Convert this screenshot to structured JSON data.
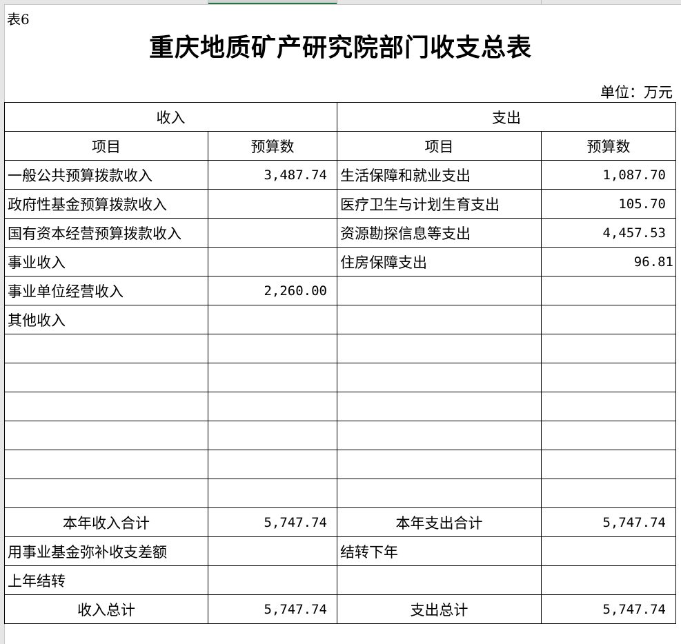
{
  "sheet": {
    "selected_column": "B"
  },
  "label": "表6",
  "title": "重庆地质矿产研究院部门收支总表",
  "unit": "单位：万元",
  "headers": {
    "income": "收入",
    "expense": "支出",
    "item": "项目",
    "budget": "预算数"
  },
  "rows": [
    {
      "income_item": "一般公共预算拨款收入",
      "income_value": "3,487.74",
      "expense_item": "生活保障和就业支出",
      "expense_value": "1,087.70"
    },
    {
      "income_item": "政府性基金预算拨款收入",
      "income_value": "",
      "expense_item": "医疗卫生与计划生育支出",
      "expense_value": "105.70"
    },
    {
      "income_item": "国有资本经营预算拨款收入",
      "income_value": "",
      "expense_item": "资源勘探信息等支出",
      "expense_value": "4,457.53"
    },
    {
      "income_item": "事业收入",
      "income_value": "",
      "expense_item": "住房保障支出",
      "expense_value": "96.81"
    },
    {
      "income_item": "事业单位经营收入",
      "income_value": "2,260.00",
      "expense_item": "",
      "expense_value": ""
    },
    {
      "income_item": "其他收入",
      "income_value": "",
      "expense_item": "",
      "expense_value": ""
    },
    {
      "income_item": "",
      "income_value": "",
      "expense_item": "",
      "expense_value": ""
    },
    {
      "income_item": "",
      "income_value": "",
      "expense_item": "",
      "expense_value": ""
    },
    {
      "income_item": "",
      "income_value": "",
      "expense_item": "",
      "expense_value": ""
    },
    {
      "income_item": "",
      "income_value": "",
      "expense_item": "",
      "expense_value": ""
    },
    {
      "income_item": "",
      "income_value": "",
      "expense_item": "",
      "expense_value": ""
    },
    {
      "income_item": "",
      "income_value": "",
      "expense_item": "",
      "expense_value": ""
    }
  ],
  "subtotal": {
    "income_label": "本年收入合计",
    "income_value": "5,747.74",
    "expense_label": "本年支出合计",
    "expense_value": "5,747.74"
  },
  "extra_rows": [
    {
      "income_item": "用事业基金弥补收支差额",
      "income_value": "",
      "expense_item": "结转下年",
      "expense_value": ""
    },
    {
      "income_item": "上年结转",
      "income_value": "",
      "expense_item": "",
      "expense_value": ""
    }
  ],
  "total": {
    "income_label": "收入总计",
    "income_value": "5,747.74",
    "expense_label": "支出总计",
    "expense_value": "5,747.74"
  }
}
